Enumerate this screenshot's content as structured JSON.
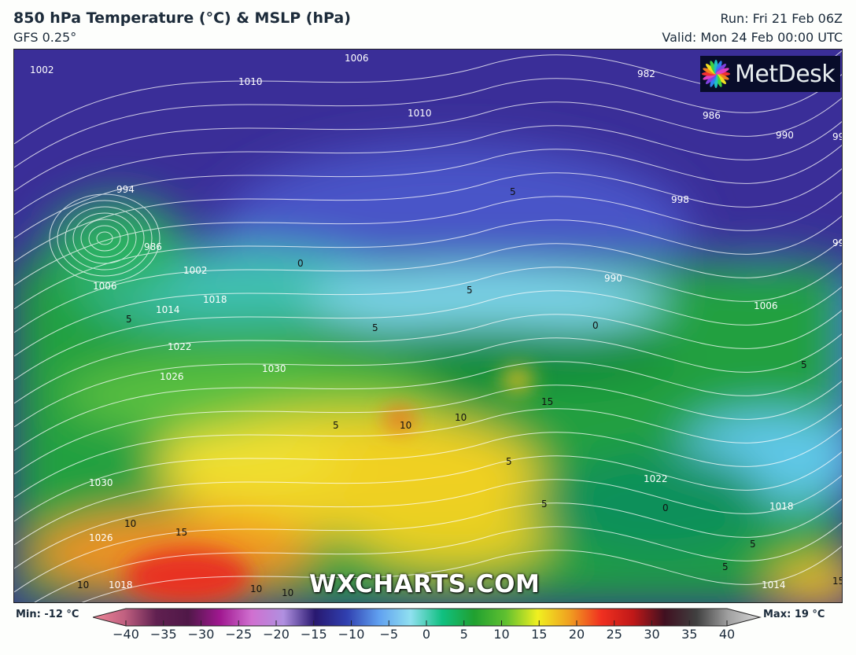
{
  "header": {
    "title": "850 hPa Temperature (°C) & MSLP (hPa)",
    "model": "GFS 0.25°",
    "run": "Run: Fri 21 Feb 06Z",
    "valid": "Valid: Mon 24 Feb 00:00 UTC"
  },
  "logo": {
    "text": "MetDesk"
  },
  "watermark": "WXCHARTS.COM",
  "colorbar": {
    "min_label": "Min: -12 °C",
    "max_label": "Max: 19 °C",
    "ticks": [
      "−40",
      "−35",
      "−30",
      "−25",
      "−20",
      "−15",
      "−10",
      "−5",
      "0",
      "5",
      "10",
      "15",
      "20",
      "25",
      "30",
      "35",
      "40"
    ],
    "colors": [
      "#f08898",
      "#c06080",
      "#602050",
      "#501848",
      "#a01890",
      "#d070d0",
      "#b090e0",
      "#281870",
      "#3040b0",
      "#60a0f0",
      "#90e0f0",
      "#10c080",
      "#20a030",
      "#60c030",
      "#f0f020",
      "#f0a020",
      "#f03020",
      "#c01818",
      "#401020",
      "#404040",
      "#a0a0a0",
      "#d8d8d8"
    ]
  },
  "map": {
    "isobar_labels": [
      "1002",
      "1006",
      "1010",
      "1010",
      "982",
      "986",
      "990",
      "994",
      "998",
      "994",
      "990",
      "986",
      "1006",
      "1002",
      "1014",
      "1018",
      "1022",
      "1026",
      "1030",
      "1030",
      "1026",
      "1018",
      "1006",
      "994",
      "1022",
      "1018",
      "1014"
    ],
    "temp_labels": [
      "0",
      "5",
      "5",
      "5",
      "5",
      "0",
      "5",
      "10",
      "15",
      "10",
      "5",
      "5",
      "10",
      "10",
      "15",
      "10",
      "10",
      "5",
      "0",
      "5",
      "5",
      "15"
    ]
  }
}
